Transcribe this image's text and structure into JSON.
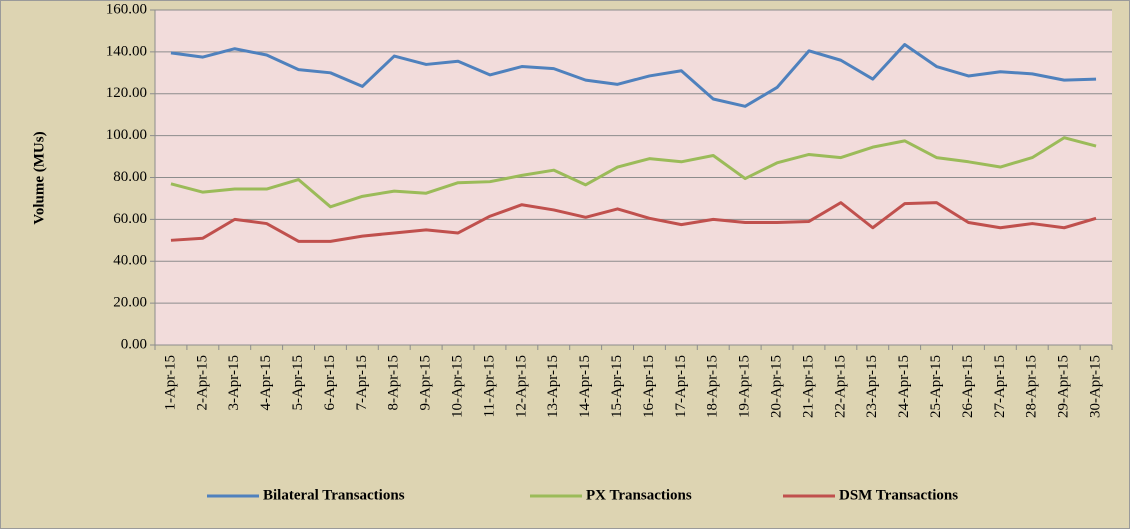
{
  "chart_data": {
    "type": "line",
    "y_label": "Volume (MUs)",
    "categories": [
      "1-Apr-15",
      "2-Apr-15",
      "3-Apr-15",
      "4-Apr-15",
      "5-Apr-15",
      "6-Apr-15",
      "7-Apr-15",
      "8-Apr-15",
      "9-Apr-15",
      "10-Apr-15",
      "11-Apr-15",
      "12-Apr-15",
      "13-Apr-15",
      "14-Apr-15",
      "15-Apr-15",
      "16-Apr-15",
      "17-Apr-15",
      "18-Apr-15",
      "19-Apr-15",
      "20-Apr-15",
      "21-Apr-15",
      "22-Apr-15",
      "23-Apr-15",
      "24-Apr-15",
      "25-Apr-15",
      "26-Apr-15",
      "27-Apr-15",
      "28-Apr-15",
      "29-Apr-15",
      "30-Apr-15"
    ],
    "series": [
      {
        "name": "Bilateral Transactions",
        "color": "#4f81bd",
        "values": [
          139.5,
          137.5,
          141.5,
          138.5,
          131.5,
          130,
          123.5,
          138,
          134,
          135.5,
          129,
          133,
          132,
          126.5,
          124.5,
          128.5,
          131,
          117.5,
          114,
          123,
          140.5,
          136,
          127,
          143.5,
          133,
          128.5,
          130.5,
          129.5,
          126.5,
          127
        ]
      },
      {
        "name": "PX Transactions",
        "color": "#9bbb59",
        "values": [
          77,
          73,
          74.5,
          74.5,
          79,
          66,
          71,
          73.5,
          72.5,
          77.5,
          78,
          81,
          83.5,
          76.5,
          85,
          89,
          87.5,
          90.5,
          79.5,
          87,
          91,
          89.5,
          94.5,
          97.5,
          89.5,
          87.5,
          85,
          89.5,
          99,
          95
        ]
      },
      {
        "name": "DSM Transactions",
        "color": "#c0504d",
        "values": [
          50,
          51,
          60,
          58,
          49.5,
          49.5,
          52,
          53.5,
          55,
          53.5,
          61.5,
          67,
          64.5,
          61,
          65,
          60.5,
          57.5,
          60,
          58.5,
          58.5,
          59,
          68,
          56,
          67.5,
          68,
          58.5,
          56,
          58,
          56,
          60.5
        ]
      }
    ],
    "ylim": [
      0,
      160
    ],
    "yticks": [
      {
        "value": 0,
        "label": "0.00"
      },
      {
        "value": 20,
        "label": "20.00"
      },
      {
        "value": 40,
        "label": "40.00"
      },
      {
        "value": 60,
        "label": "60.00"
      },
      {
        "value": 80,
        "label": "80.00"
      },
      {
        "value": 100,
        "label": "100.00"
      },
      {
        "value": 120,
        "label": "120.00"
      },
      {
        "value": 140,
        "label": "140.00"
      },
      {
        "value": 160,
        "label": "160.00"
      }
    ],
    "grid": true,
    "legend": "bottom"
  }
}
